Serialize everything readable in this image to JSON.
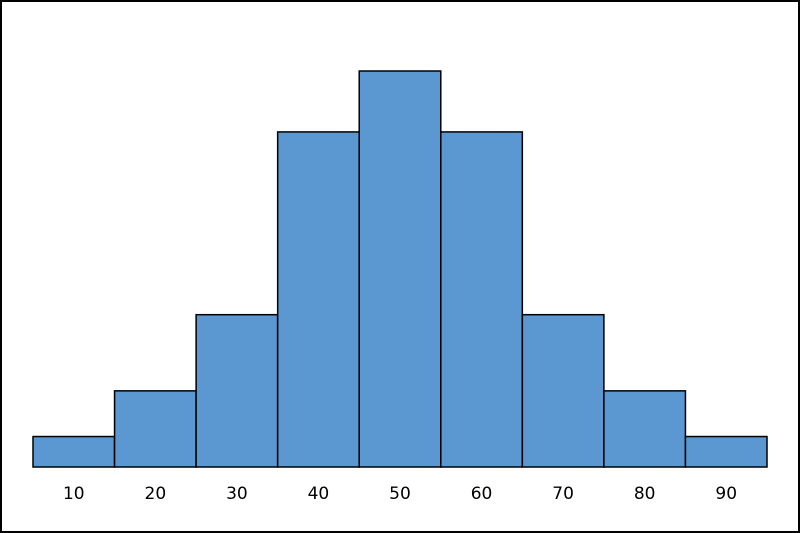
{
  "chart_data": {
    "type": "histogram",
    "bins": [
      5,
      15,
      25,
      35,
      45,
      55,
      65,
      75,
      85,
      95
    ],
    "values": [
      2,
      5,
      10,
      22,
      26,
      22,
      10,
      5,
      2
    ],
    "color": "#5b97d1",
    "xlim": [
      5,
      95
    ],
    "xticks": [
      10,
      20,
      30,
      40,
      50,
      60,
      70,
      80,
      90
    ],
    "ylim": [
      0,
      26
    ]
  }
}
